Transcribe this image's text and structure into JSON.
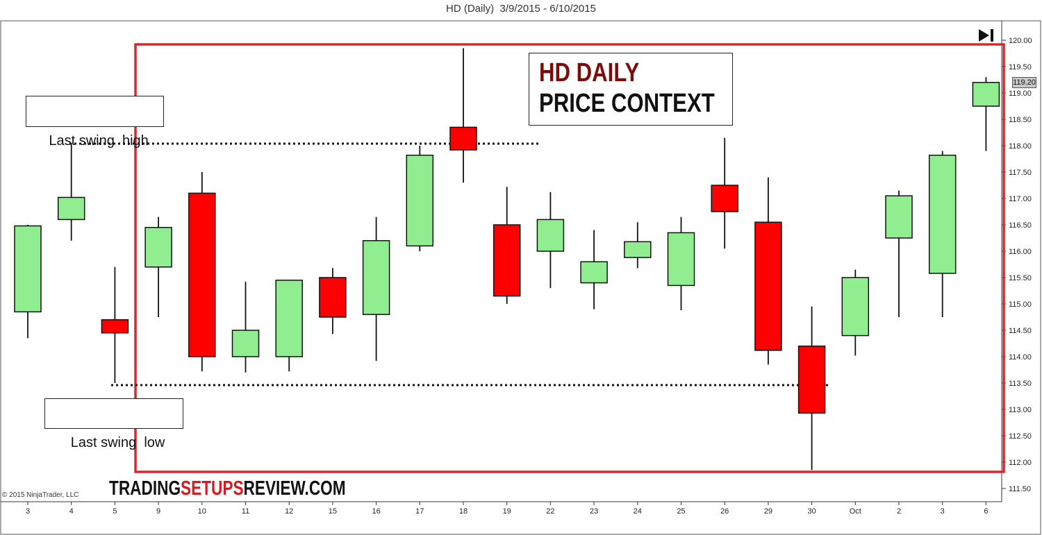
{
  "chart_data": {
    "type": "candlestick",
    "title": "HD (Daily)  3/9/2015 - 6/10/2015",
    "categories": [
      "3",
      "4",
      "5",
      "9",
      "10",
      "11",
      "12",
      "15",
      "16",
      "17",
      "18",
      "19",
      "22",
      "23",
      "24",
      "25",
      "26",
      "29",
      "30",
      "Oct",
      "2",
      "3",
      "6"
    ],
    "open": [
      114.85,
      116.6,
      114.7,
      115.7,
      117.1,
      114.0,
      114.0,
      115.5,
      114.8,
      116.1,
      118.35,
      116.5,
      116.0,
      115.4,
      115.88,
      115.35,
      117.25,
      116.55,
      114.2,
      114.4,
      116.25,
      115.58,
      118.75
    ],
    "high": [
      116.5,
      118.05,
      115.7,
      116.65,
      117.5,
      115.42,
      115.45,
      115.68,
      116.65,
      118.0,
      119.85,
      117.22,
      117.12,
      116.4,
      116.55,
      116.65,
      118.15,
      117.4,
      114.95,
      115.65,
      117.15,
      117.9,
      119.3
    ],
    "low": [
      114.35,
      116.2,
      113.5,
      114.75,
      113.72,
      113.7,
      113.72,
      114.43,
      113.92,
      116.0,
      117.3,
      115.0,
      115.3,
      114.9,
      115.68,
      114.88,
      116.05,
      113.85,
      111.85,
      114.02,
      114.75,
      114.75,
      117.9
    ],
    "close": [
      116.48,
      117.02,
      114.45,
      116.45,
      114.0,
      114.5,
      115.45,
      114.75,
      116.2,
      117.82,
      117.92,
      115.15,
      116.6,
      115.8,
      116.18,
      116.35,
      116.75,
      114.12,
      112.93,
      115.5,
      117.05,
      117.82,
      119.2
    ],
    "y_ticks": [
      "111.50",
      "112.00",
      "112.50",
      "113.00",
      "113.50",
      "114.00",
      "114.50",
      "115.00",
      "115.50",
      "116.00",
      "116.50",
      "117.00",
      "117.50",
      "118.00",
      "118.50",
      "119.00",
      "119.50",
      "120.00"
    ],
    "ylim": [
      111.5,
      120.0
    ],
    "last_price": "119.20",
    "colors": {
      "up": "#90ee90",
      "down": "#ff0000",
      "frame": "#d9272e",
      "outline": "#111111"
    },
    "swing_high": 118.04,
    "swing_low": 113.46
  },
  "annotations": {
    "swing_high_label": "Last swing  high",
    "swing_low_label": "Last swing  low",
    "title_line1": "HD DAILY",
    "title_line2": "PRICE CONTEXT"
  },
  "watermark": {
    "part1": "TRADING",
    "part2": "SETUPS",
    "part3": "REVIEW.COM"
  },
  "copyright": "© 2015 NinjaTrader, LLC",
  "icons": {
    "end_button": "skip-to-end-icon"
  }
}
